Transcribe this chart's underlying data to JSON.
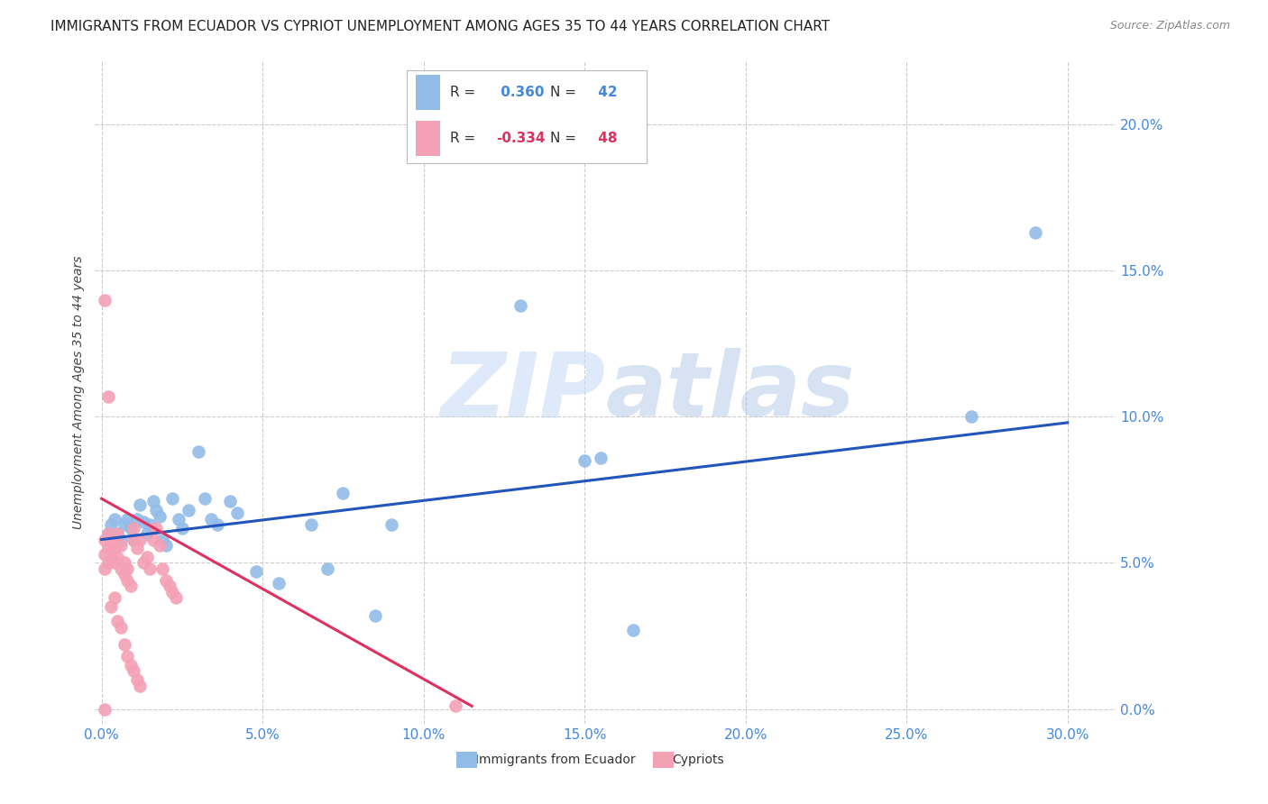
{
  "title": "IMMIGRANTS FROM ECUADOR VS CYPRIOT UNEMPLOYMENT AMONG AGES 35 TO 44 YEARS CORRELATION CHART",
  "source": "Source: ZipAtlas.com",
  "xlim": [
    -0.002,
    0.315
  ],
  "ylim": [
    -0.005,
    0.222
  ],
  "ylabel_ticks": [
    0.0,
    0.05,
    0.1,
    0.15,
    0.2
  ],
  "xlabel_ticks": [
    0.0,
    0.05,
    0.1,
    0.15,
    0.2,
    0.25,
    0.3
  ],
  "blue_R": 0.36,
  "blue_N": 42,
  "pink_R": -0.334,
  "pink_N": 48,
  "blue_label": "Immigrants from Ecuador",
  "pink_label": "Cypriots",
  "blue_color": "#92bce8",
  "pink_color": "#f4a0b5",
  "blue_line_color": "#2255bb",
  "pink_line_color": "#e03060",
  "blue_scatter_x": [
    0.002,
    0.003,
    0.004,
    0.005,
    0.006,
    0.007,
    0.008,
    0.009,
    0.01,
    0.011,
    0.012,
    0.013,
    0.014,
    0.015,
    0.016,
    0.017,
    0.018,
    0.019,
    0.02,
    0.022,
    0.024,
    0.025,
    0.027,
    0.03,
    0.032,
    0.034,
    0.036,
    0.04,
    0.042,
    0.048,
    0.055,
    0.065,
    0.07,
    0.075,
    0.085,
    0.09,
    0.13,
    0.15,
    0.165,
    0.27,
    0.29,
    0.155
  ],
  "blue_scatter_y": [
    0.06,
    0.063,
    0.065,
    0.06,
    0.058,
    0.063,
    0.065,
    0.062,
    0.058,
    0.065,
    0.07,
    0.064,
    0.06,
    0.063,
    0.071,
    0.068,
    0.066,
    0.058,
    0.056,
    0.072,
    0.065,
    0.062,
    0.068,
    0.088,
    0.072,
    0.065,
    0.063,
    0.071,
    0.067,
    0.047,
    0.043,
    0.063,
    0.048,
    0.074,
    0.032,
    0.063,
    0.138,
    0.085,
    0.027,
    0.1,
    0.163,
    0.086
  ],
  "pink_scatter_x": [
    0.001,
    0.001,
    0.001,
    0.002,
    0.002,
    0.002,
    0.003,
    0.003,
    0.004,
    0.004,
    0.005,
    0.005,
    0.006,
    0.006,
    0.007,
    0.007,
    0.008,
    0.008,
    0.009,
    0.01,
    0.01,
    0.011,
    0.012,
    0.013,
    0.014,
    0.015,
    0.016,
    0.017,
    0.018,
    0.019,
    0.02,
    0.021,
    0.022,
    0.023,
    0.001,
    0.002,
    0.003,
    0.004,
    0.005,
    0.006,
    0.007,
    0.008,
    0.009,
    0.01,
    0.011,
    0.012,
    0.11,
    0.001
  ],
  "pink_scatter_y": [
    0.058,
    0.053,
    0.048,
    0.06,
    0.055,
    0.05,
    0.058,
    0.052,
    0.055,
    0.05,
    0.06,
    0.052,
    0.056,
    0.048,
    0.05,
    0.046,
    0.048,
    0.044,
    0.042,
    0.058,
    0.062,
    0.055,
    0.058,
    0.05,
    0.052,
    0.048,
    0.058,
    0.062,
    0.056,
    0.048,
    0.044,
    0.042,
    0.04,
    0.038,
    0.14,
    0.107,
    0.035,
    0.038,
    0.03,
    0.028,
    0.022,
    0.018,
    0.015,
    0.013,
    0.01,
    0.008,
    0.001,
    0.0
  ],
  "blue_line_x": [
    0.0,
    0.3
  ],
  "blue_line_y": [
    0.058,
    0.098
  ],
  "pink_line_x": [
    0.0,
    0.115
  ],
  "pink_line_y": [
    0.072,
    0.001
  ],
  "ylabel": "Unemployment Among Ages 35 to 44 years",
  "watermark_zip": "ZIP",
  "watermark_atlas": "atlas",
  "background_color": "#ffffff",
  "grid_color": "#cccccc",
  "title_fontsize": 11,
  "axis_label_fontsize": 10,
  "tick_fontsize": 11,
  "source_fontsize": 9
}
